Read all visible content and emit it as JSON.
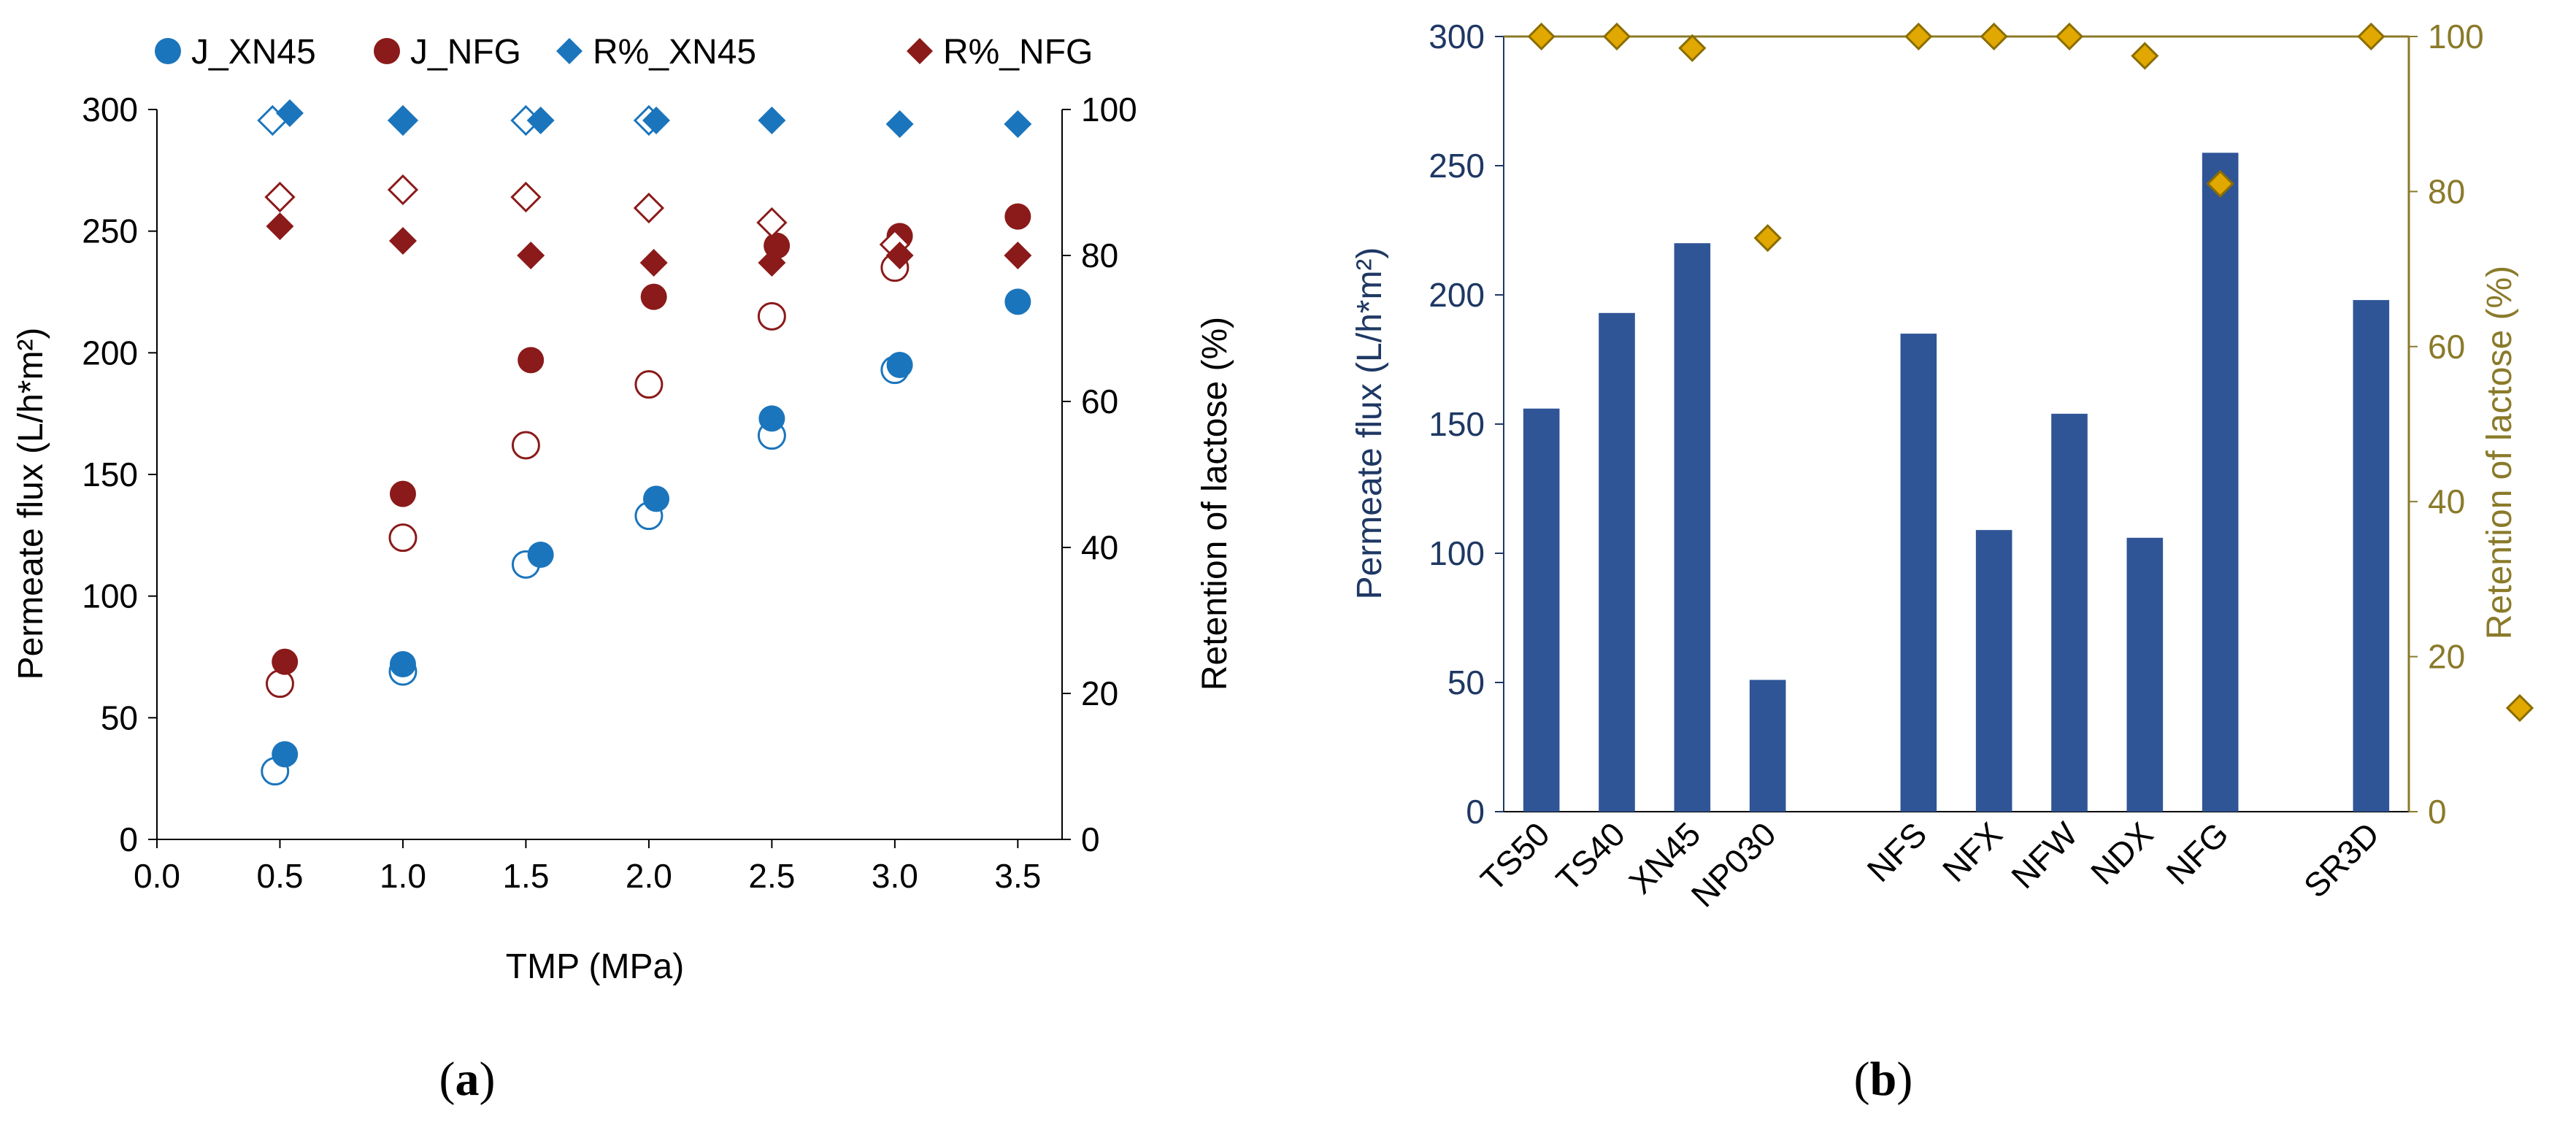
{
  "panels": [
    {
      "caption_letter": "a",
      "chart_data": {
        "type": "scatter",
        "xlabel": "TMP (MPa)",
        "ylabel_left": "Permeate flux (L/h*m²)",
        "ylabel_right": "Retention of lactose (%)",
        "xlim": [
          0.0,
          3.5
        ],
        "ylim_left": [
          0,
          300
        ],
        "ylim_right": [
          0,
          100
        ],
        "x_ticks": [
          "0.0",
          "0.5",
          "1.0",
          "1.5",
          "2.0",
          "2.5",
          "3.0",
          "3.5"
        ],
        "y_ticks_left": [
          "0",
          "50",
          "100",
          "150",
          "200",
          "250",
          "300"
        ],
        "y_ticks_right": [
          "0",
          "20",
          "40",
          "60",
          "80",
          "100"
        ],
        "legend_position": "top",
        "series": [
          {
            "name": "J_XN45",
            "marker": "circle",
            "color": "#1b75bc",
            "axis": "left",
            "filled": {
              "x": [
                0.52,
                1.0,
                1.56,
                2.03,
                2.5,
                3.02,
                3.5
              ],
              "y": [
                35,
                72,
                117,
                140,
                173,
                195,
                221
              ]
            },
            "open": {
              "x": [
                0.48,
                1.0,
                1.5,
                2.0,
                2.5,
                3.0
              ],
              "y": [
                28,
                69,
                113,
                133,
                166,
                193
              ]
            }
          },
          {
            "name": "J_NFG",
            "marker": "circle",
            "color": "#8b1a1a",
            "axis": "left",
            "filled": {
              "x": [
                0.52,
                1.0,
                1.52,
                2.02,
                2.52,
                3.02,
                3.5
              ],
              "y": [
                73,
                142,
                197,
                223,
                244,
                248,
                256
              ]
            },
            "open": {
              "x": [
                0.5,
                1.0,
                1.5,
                2.0,
                2.5,
                3.0
              ],
              "y": [
                64,
                124,
                162,
                187,
                215,
                235
              ]
            }
          },
          {
            "name": "R%_XN45",
            "marker": "diamond",
            "color": "#1b75bc",
            "axis": "right",
            "filled": {
              "x": [
                0.54,
                1.0,
                1.56,
                2.03,
                2.5,
                3.02,
                3.5
              ],
              "y": [
                99.5,
                98.5,
                98.5,
                98.5,
                98.5,
                98.0,
                98.0
              ]
            },
            "open": {
              "x": [
                0.47,
                1.0,
                1.5,
                2.0
              ],
              "y": [
                98.5,
                98.5,
                98.5,
                98.5
              ]
            }
          },
          {
            "name": "R%_NFG",
            "marker": "diamond",
            "color": "#8b1a1a",
            "axis": "right",
            "filled": {
              "x": [
                0.5,
                1.0,
                1.52,
                2.02,
                2.5,
                3.02,
                3.5
              ],
              "y": [
                84,
                82,
                80,
                79,
                79,
                80,
                80
              ]
            },
            "open": {
              "x": [
                0.5,
                1.0,
                1.5,
                2.0,
                2.5,
                3.0
              ],
              "y": [
                88,
                89,
                88,
                86.5,
                84.5,
                81.5
              ]
            }
          }
        ]
      }
    },
    {
      "caption_letter": "b",
      "chart_data": {
        "type": "bar",
        "categories": [
          "TS50",
          "TS40",
          "XN45",
          "NP030",
          "",
          "NFS",
          "NFX",
          "NFW",
          "NDX",
          "NFG",
          "",
          "SR3D"
        ],
        "ylabel_left": "Permeate flux (L/h*m²)",
        "ylabel_right": "Retention of lactose (%)",
        "ylim_left": [
          0,
          300
        ],
        "ylim_right": [
          0,
          100
        ],
        "y_ticks_left": [
          "0",
          "50",
          "100",
          "150",
          "200",
          "250",
          "300"
        ],
        "y_ticks_right": [
          "0",
          "20",
          "40",
          "60",
          "80",
          "100"
        ],
        "bar_color": "#2f5597",
        "retention_color": "#e0a800",
        "axis_right_color": "#8a7a2a",
        "axis_left_color": "#1f3864",
        "series": [
          {
            "axis": "left",
            "type": "bar",
            "values": [
              156,
              193,
              220,
              51,
              null,
              185,
              109,
              154,
              106,
              255,
              null,
              198
            ]
          },
          {
            "axis": "right",
            "type": "diamond",
            "values": [
              100,
              100,
              98.5,
              74,
              null,
              100,
              100,
              100,
              97.5,
              81,
              null,
              100
            ]
          }
        ],
        "legend_marker": "diamond"
      }
    }
  ]
}
